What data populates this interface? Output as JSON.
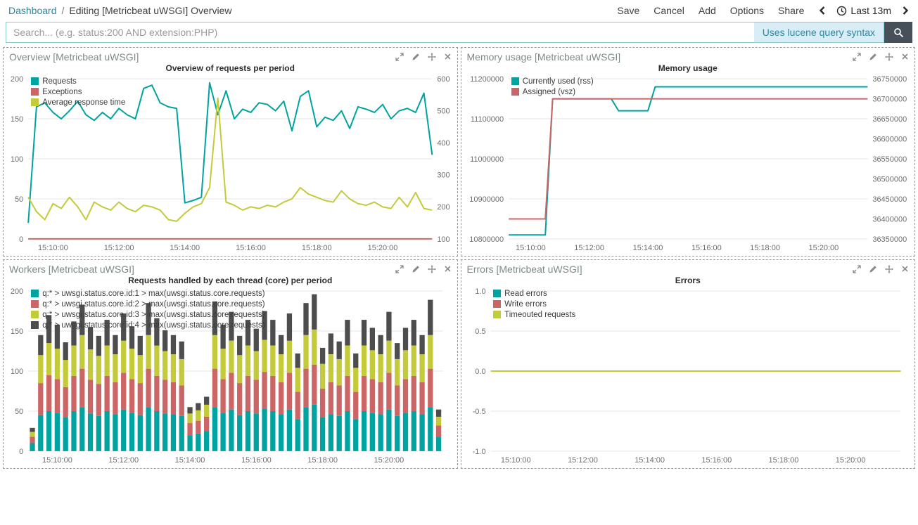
{
  "topnav": {
    "breadcrumb": {
      "root": "Dashboard",
      "separator": "/",
      "current": "Editing [Metricbeat uWSGI] Overview"
    },
    "menu": {
      "save": "Save",
      "cancel": "Cancel",
      "add": "Add",
      "options": "Options",
      "share": "Share"
    },
    "timepicker": {
      "range_label": "Last 13m"
    }
  },
  "search": {
    "placeholder": "Search... (e.g. status:200 AND extension:PHP)",
    "syntax_hint": "Uses lucene query syntax"
  },
  "panels": [
    {
      "title": "Overview [Metricbeat uWSGI]"
    },
    {
      "title": "Memory usage [Metricbeat uWSGI]"
    },
    {
      "title": "Workers [Metricbeat uWSGI]"
    },
    {
      "title": "Errors [Metricbeat uWSGI]"
    }
  ],
  "colors": {
    "series_teal": "#00a3a0",
    "series_red": "#cc6666",
    "series_yellow": "#c3cb3b",
    "series_dark_gray": "#4d4d4d",
    "link_blue": "#2f86a1",
    "search_button_bg": "#474f58"
  },
  "chart_data": [
    {
      "type": "line",
      "title": "Overview of requests per period",
      "legend_position": "top-left",
      "x_start": "15:09:15",
      "x_interval_seconds": 15,
      "x_tick_labels": [
        "15:10:00",
        "15:12:00",
        "15:14:00",
        "15:16:00",
        "15:18:00",
        "15:20:00"
      ],
      "x_tick_indices": [
        3,
        11,
        19,
        27,
        35,
        43
      ],
      "left_axis": {
        "min": 0,
        "max": 200,
        "tick_values": [
          0,
          50,
          100,
          150,
          200
        ],
        "tick_labels": [
          "0",
          "50",
          "100",
          "150",
          "200"
        ]
      },
      "right_axis": {
        "min": 100,
        "max": 600,
        "tick_values": [
          100,
          200,
          300,
          400,
          500,
          600
        ],
        "tick_labels": [
          "100",
          "200",
          "300",
          "400",
          "500",
          "600"
        ]
      },
      "series": [
        {
          "name": "Requests",
          "color": "#00a3a0",
          "axis": "left",
          "values": [
            20,
            165,
            170,
            158,
            150,
            160,
            172,
            155,
            148,
            158,
            150,
            163,
            155,
            150,
            188,
            192,
            170,
            165,
            163,
            45,
            48,
            52,
            195,
            155,
            185,
            150,
            162,
            158,
            170,
            168,
            160,
            172,
            135,
            178,
            185,
            140,
            152,
            148,
            160,
            138,
            165,
            162,
            158,
            168,
            150,
            160,
            163,
            158,
            182,
            105
          ]
        },
        {
          "name": "Exceptions",
          "color": "#cc6666",
          "axis": "left",
          "values": [
            0,
            0,
            0,
            0,
            0,
            0,
            0,
            0,
            0,
            0,
            0,
            0,
            0,
            0,
            0,
            0,
            0,
            0,
            0,
            0,
            0,
            0,
            0,
            0,
            0,
            0,
            0,
            0,
            0,
            0,
            0,
            0,
            0,
            0,
            0,
            0,
            0,
            0,
            0,
            0,
            0,
            0,
            0,
            0,
            0,
            0,
            0,
            0,
            0,
            0
          ]
        },
        {
          "name": "Average response time",
          "color": "#c3cb3b",
          "axis": "right",
          "values": [
            230,
            185,
            160,
            210,
            195,
            230,
            200,
            160,
            215,
            200,
            190,
            215,
            195,
            185,
            205,
            200,
            190,
            160,
            155,
            180,
            200,
            210,
            260,
            540,
            215,
            205,
            190,
            200,
            195,
            205,
            200,
            215,
            225,
            260,
            240,
            230,
            220,
            215,
            250,
            225,
            210,
            205,
            215,
            200,
            195,
            230,
            200,
            245,
            195,
            190
          ]
        }
      ]
    },
    {
      "type": "line",
      "title": "Memory usage",
      "legend_position": "top-left",
      "x_start": "15:09:15",
      "x_interval_seconds": 15,
      "x_tick_labels": [
        "15:10:00",
        "15:12:00",
        "15:14:00",
        "15:16:00",
        "15:18:00",
        "15:20:00"
      ],
      "x_tick_indices": [
        3,
        11,
        19,
        27,
        35,
        43
      ],
      "left_axis": {
        "min": 10800000,
        "max": 11200000,
        "tick_values": [
          10800000,
          10900000,
          11000000,
          11100000,
          11200000
        ],
        "tick_labels": [
          "10800000",
          "10900000",
          "11000000",
          "11100000",
          "11200000"
        ]
      },
      "right_axis": {
        "min": 36350000,
        "max": 36750000,
        "tick_values": [
          36350000,
          36400000,
          36450000,
          36500000,
          36550000,
          36600000,
          36650000,
          36700000,
          36750000
        ],
        "tick_labels": [
          "36350000",
          "36400000",
          "36450000",
          "36500000",
          "36550000",
          "36600000",
          "36650000",
          "36700000",
          "36750000"
        ]
      },
      "series": [
        {
          "name": "Currently used (rss)",
          "color": "#00a3a0",
          "axis": "left",
          "values": [
            10810000,
            10810000,
            10810000,
            10810000,
            10810000,
            10810000,
            11150000,
            11150000,
            11150000,
            11150000,
            11150000,
            11150000,
            11150000,
            11150000,
            11150000,
            11120000,
            11120000,
            11120000,
            11120000,
            11120000,
            11180000,
            11180000,
            11180000,
            11180000,
            11180000,
            11180000,
            11180000,
            11180000,
            11180000,
            11180000,
            11180000,
            11180000,
            11180000,
            11180000,
            11180000,
            11180000,
            11180000,
            11180000,
            11180000,
            11180000,
            11180000,
            11180000,
            11180000,
            11180000,
            11180000,
            11180000,
            11180000,
            11180000,
            11180000,
            11180000
          ]
        },
        {
          "name": "Assigned (vsz)",
          "color": "#cc6666",
          "axis": "right",
          "values": [
            36400000,
            36400000,
            36400000,
            36400000,
            36400000,
            36400000,
            36700000,
            36700000,
            36700000,
            36700000,
            36700000,
            36700000,
            36700000,
            36700000,
            36700000,
            36700000,
            36700000,
            36700000,
            36700000,
            36700000,
            36700000,
            36700000,
            36700000,
            36700000,
            36700000,
            36700000,
            36700000,
            36700000,
            36700000,
            36700000,
            36700000,
            36700000,
            36700000,
            36700000,
            36700000,
            36700000,
            36700000,
            36700000,
            36700000,
            36700000,
            36700000,
            36700000,
            36700000,
            36700000,
            36700000,
            36700000,
            36700000,
            36700000,
            36700000,
            36700000
          ]
        }
      ]
    },
    {
      "type": "stacked-bar",
      "title": "Requests handled by each thread (core) per period",
      "legend_position": "top-left",
      "x_start": "15:09:15",
      "x_interval_seconds": 15,
      "x_tick_labels": [
        "15:10:00",
        "15:12:00",
        "15:14:00",
        "15:16:00",
        "15:18:00",
        "15:20:00"
      ],
      "x_tick_indices": [
        3,
        11,
        19,
        27,
        35,
        43
      ],
      "left_axis": {
        "min": 0,
        "max": 200,
        "tick_values": [
          0,
          50,
          100,
          150,
          200
        ],
        "tick_labels": [
          "0",
          "50",
          "100",
          "150",
          "200"
        ]
      },
      "right_axis": null,
      "series": [
        {
          "name": "q:* > uwsgi.status.core.id:1 > max(uwsgi.status.core.requests)",
          "color": "#00a3a0",
          "axis": "left",
          "values": [
            10,
            45,
            50,
            48,
            42,
            50,
            55,
            47,
            44,
            50,
            46,
            52,
            48,
            45,
            55,
            50,
            47,
            46,
            44,
            20,
            22,
            25,
            55,
            48,
            52,
            45,
            50,
            47,
            53,
            50,
            46,
            52,
            40,
            55,
            58,
            42,
            46,
            44,
            50,
            40,
            50,
            48,
            46,
            52,
            44,
            48,
            50,
            46,
            55,
            18
          ]
        },
        {
          "name": "q:* > uwsgi.status.core.id:2 > max(uwsgi.status.core.requests)",
          "color": "#cc6666",
          "axis": "left",
          "values": [
            8,
            40,
            45,
            42,
            38,
            44,
            48,
            42,
            40,
            44,
            40,
            46,
            42,
            40,
            48,
            44,
            42,
            40,
            38,
            15,
            16,
            18,
            48,
            42,
            46,
            40,
            44,
            42,
            46,
            44,
            40,
            46,
            34,
            48,
            50,
            36,
            40,
            38,
            44,
            34,
            44,
            42,
            40,
            46,
            38,
            42,
            44,
            40,
            48,
            14
          ]
        },
        {
          "name": "q:* > uwsgi.status.core.id:3 > max(uwsgi.status.core.requests)",
          "color": "#c3cb3b",
          "axis": "left",
          "values": [
            6,
            35,
            40,
            38,
            34,
            38,
            42,
            38,
            35,
            38,
            35,
            40,
            38,
            35,
            42,
            38,
            36,
            35,
            33,
            12,
            13,
            15,
            42,
            38,
            40,
            35,
            38,
            36,
            40,
            38,
            35,
            40,
            30,
            42,
            44,
            31,
            35,
            33,
            38,
            30,
            38,
            36,
            35,
            40,
            33,
            36,
            38,
            35,
            42,
            11
          ]
        },
        {
          "name": "q:* > uwsgi.status.core.id:4 > max(uwsgi.status.core.requests)",
          "color": "#4d4d4d",
          "axis": "left",
          "values": [
            5,
            25,
            35,
            30,
            22,
            30,
            38,
            28,
            25,
            32,
            24,
            34,
            28,
            24,
            40,
            34,
            26,
            24,
            22,
            8,
            9,
            10,
            42,
            30,
            36,
            24,
            32,
            28,
            36,
            32,
            24,
            34,
            18,
            40,
            44,
            20,
            26,
            22,
            32,
            18,
            32,
            28,
            24,
            36,
            20,
            28,
            32,
            24,
            44,
            9
          ]
        }
      ]
    },
    {
      "type": "line",
      "title": "Errors",
      "legend_position": "top-left",
      "x_start": "15:09:15",
      "x_interval_seconds": 15,
      "x_tick_labels": [
        "15:10:00",
        "15:12:00",
        "15:14:00",
        "15:16:00",
        "15:18:00",
        "15:20:00"
      ],
      "x_tick_indices": [
        3,
        11,
        19,
        27,
        35,
        43
      ],
      "left_axis": {
        "min": -1,
        "max": 1,
        "tick_values": [
          -1,
          -0.5,
          0,
          0.5,
          1
        ],
        "tick_labels": [
          "-1.0",
          "-0.5",
          "0.0",
          "0.5",
          "1.0"
        ]
      },
      "right_axis": null,
      "series": [
        {
          "name": "Read errors",
          "color": "#00a3a0",
          "axis": "left",
          "values": [
            0,
            0,
            0,
            0,
            0,
            0,
            0,
            0,
            0,
            0,
            0,
            0,
            0,
            0,
            0,
            0,
            0,
            0,
            0,
            0,
            0,
            0,
            0,
            0,
            0,
            0,
            0,
            0,
            0,
            0,
            0,
            0,
            0,
            0,
            0,
            0,
            0,
            0,
            0,
            0,
            0,
            0,
            0,
            0,
            0,
            0,
            0,
            0,
            0,
            0
          ]
        },
        {
          "name": "Write errors",
          "color": "#cc6666",
          "axis": "left",
          "values": [
            0,
            0,
            0,
            0,
            0,
            0,
            0,
            0,
            0,
            0,
            0,
            0,
            0,
            0,
            0,
            0,
            0,
            0,
            0,
            0,
            0,
            0,
            0,
            0,
            0,
            0,
            0,
            0,
            0,
            0,
            0,
            0,
            0,
            0,
            0,
            0,
            0,
            0,
            0,
            0,
            0,
            0,
            0,
            0,
            0,
            0,
            0,
            0,
            0,
            0
          ]
        },
        {
          "name": "Timeouted requests",
          "color": "#c3cb3b",
          "axis": "left",
          "values": [
            0,
            0,
            0,
            0,
            0,
            0,
            0,
            0,
            0,
            0,
            0,
            0,
            0,
            0,
            0,
            0,
            0,
            0,
            0,
            0,
            0,
            0,
            0,
            0,
            0,
            0,
            0,
            0,
            0,
            0,
            0,
            0,
            0,
            0,
            0,
            0,
            0,
            0,
            0,
            0,
            0,
            0,
            0,
            0,
            0,
            0,
            0,
            0,
            0,
            0
          ]
        }
      ]
    }
  ]
}
